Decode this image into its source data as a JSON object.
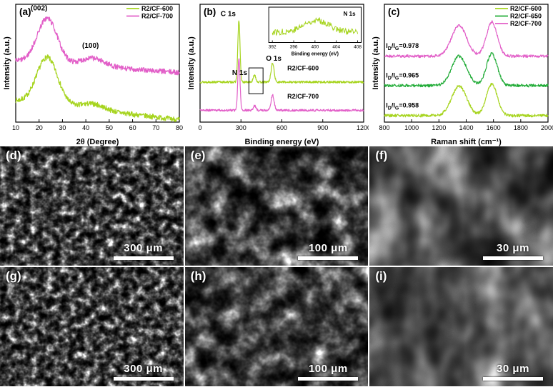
{
  "colors": {
    "cf600": "#a6d41e",
    "cf650": "#22ac38",
    "cf700": "#e25fc8",
    "axis": "#000000"
  },
  "chart_data": [
    {
      "id": "a",
      "panel_label": "(a)",
      "type": "line",
      "xlabel": "2θ (Degree)",
      "ylabel": "Intensity (a.u.)",
      "xlim": [
        10,
        80
      ],
      "xticks": [
        10,
        20,
        30,
        40,
        50,
        60,
        70,
        80
      ],
      "ylim": [
        0,
        1
      ],
      "seed": 7,
      "npts": 520,
      "legend": [
        {
          "name": "R2/CF-600",
          "color": "#a6d41e"
        },
        {
          "name": "R2/CF-700",
          "color": "#e25fc8"
        }
      ],
      "annotations": [
        {
          "text": "(002)",
          "x": 20,
          "y": 0.95,
          "cls": "ann"
        },
        {
          "text": "(100)",
          "x": 42,
          "y": 0.63,
          "cls": "ann"
        }
      ],
      "series": [
        {
          "name": "R2/CF-600",
          "color": "#a6d41e",
          "offset": 0.18,
          "slope": -0.16,
          "noise": 0.022,
          "peaks": [
            {
              "c": 23.5,
              "w": 4.5,
              "a": 0.4
            },
            {
              "c": 43,
              "w": 5,
              "a": 0.05
            }
          ]
        },
        {
          "name": "R2/CF-700",
          "color": "#e25fc8",
          "offset": 0.52,
          "slope": -0.1,
          "noise": 0.022,
          "peaks": [
            {
              "c": 23.5,
              "w": 4.3,
              "a": 0.38
            },
            {
              "c": 43,
              "w": 5,
              "a": 0.07
            }
          ]
        }
      ]
    },
    {
      "id": "b",
      "panel_label": "(b)",
      "type": "line",
      "xlabel": "Binding energy (eV)",
      "ylabel": "Intensity (a.u.)",
      "xlim": [
        0,
        1200
      ],
      "xticks": [
        0,
        300,
        600,
        900,
        1200
      ],
      "ylim": [
        0,
        1
      ],
      "seed": 13,
      "npts": 620,
      "boxes": [
        {
          "x1": 358,
          "y1": 0.24,
          "x2": 462,
          "y2": 0.46
        }
      ],
      "annotations": [
        {
          "text": "C 1s",
          "x": 262,
          "y": 0.9,
          "anchor": "end",
          "cls": "ann"
        },
        {
          "text": "N 1s",
          "x": 346,
          "y": 0.4,
          "anchor": "end",
          "cls": "ann"
        },
        {
          "text": "O 1s",
          "x": 540,
          "y": 0.52,
          "anchor": "middle",
          "cls": "ann"
        },
        {
          "text": "R2/CF-600",
          "x": 640,
          "y": 0.44,
          "anchor": "start",
          "cls": "clabel"
        },
        {
          "text": "R2/CF-700",
          "x": 640,
          "y": 0.2,
          "anchor": "start",
          "cls": "clabel"
        }
      ],
      "series": [
        {
          "name": "R2/CF-600",
          "color": "#a6d41e",
          "offset": 0.34,
          "slope": 0,
          "noise": 0.009,
          "peaks": [
            {
              "c": 285,
              "w": 8,
              "a": 0.52
            },
            {
              "c": 400,
              "w": 9,
              "a": 0.06
            },
            {
              "c": 532,
              "w": 11,
              "a": 0.16
            }
          ]
        },
        {
          "name": "R2/CF-700",
          "color": "#e25fc8",
          "offset": 0.1,
          "slope": 0,
          "noise": 0.009,
          "peaks": [
            {
              "c": 285,
              "w": 8,
              "a": 0.44
            },
            {
              "c": 400,
              "w": 9,
              "a": 0.04
            },
            {
              "c": 532,
              "w": 11,
              "a": 0.13
            }
          ]
        }
      ],
      "inset": {
        "label": "N 1s",
        "xlabel": "Binding energy (eV)",
        "xlim": [
          392,
          408
        ],
        "xticks": [
          392,
          396,
          400,
          404,
          408
        ],
        "color": "#a6d41e",
        "peak": {
          "c": 400.3,
          "w": 2.4,
          "a": 0.34
        },
        "noise": 0.18
      }
    },
    {
      "id": "c",
      "panel_label": "(c)",
      "type": "line",
      "xlabel": "Raman shift (cm⁻¹)",
      "ylabel": "Intensity (a.u.)",
      "xlim": [
        800,
        2000
      ],
      "xticks": [
        800,
        1000,
        1200,
        1400,
        1600,
        1800,
        2000
      ],
      "ylim": [
        0,
        1
      ],
      "seed": 21,
      "npts": 460,
      "legend": [
        {
          "name": "R2/CF-600",
          "color": "#a6d41e"
        },
        {
          "name": "R2/CF-650",
          "color": "#22ac38"
        },
        {
          "name": "R2/CF-700",
          "color": "#e25fc8"
        }
      ],
      "annotations": [
        {
          "text": "ID/IG=0.978",
          "x": 812,
          "y": 0.63,
          "anchor": "start",
          "cls": "ratio"
        },
        {
          "text": "ID/IG=0.965",
          "x": 812,
          "y": 0.38,
          "anchor": "start",
          "cls": "ratio"
        },
        {
          "text": "ID/IG=0.958",
          "x": 812,
          "y": 0.125,
          "anchor": "start",
          "cls": "ratio"
        }
      ],
      "series": [
        {
          "name": "R2/CF-700",
          "color": "#e25fc8",
          "offset": 0.56,
          "slope": 0,
          "noise": 0.012,
          "peaks": [
            {
              "c": 1348,
              "w": 55,
              "a": 0.26
            },
            {
              "c": 1588,
              "w": 40,
              "a": 0.29
            }
          ]
        },
        {
          "name": "R2/CF-650",
          "color": "#22ac38",
          "offset": 0.31,
          "slope": 0,
          "noise": 0.012,
          "peaks": [
            {
              "c": 1348,
              "w": 55,
              "a": 0.25
            },
            {
              "c": 1588,
              "w": 40,
              "a": 0.27
            }
          ]
        },
        {
          "name": "R2/CF-600",
          "color": "#a6d41e",
          "offset": 0.055,
          "slope": 0,
          "noise": 0.012,
          "peaks": [
            {
              "c": 1348,
              "w": 55,
              "a": 0.25
            },
            {
              "c": 1588,
              "w": 40,
              "a": 0.27
            }
          ]
        }
      ]
    }
  ],
  "sem": {
    "panels": [
      {
        "label": "(d)",
        "scale": "300 μm"
      },
      {
        "label": "(e)",
        "scale": "100 μm"
      },
      {
        "label": "(f)",
        "scale": "30 μm"
      },
      {
        "label": "(g)",
        "scale": "300 μm"
      },
      {
        "label": "(h)",
        "scale": "100 μm"
      },
      {
        "label": "(i)",
        "scale": "30 μm"
      }
    ]
  }
}
